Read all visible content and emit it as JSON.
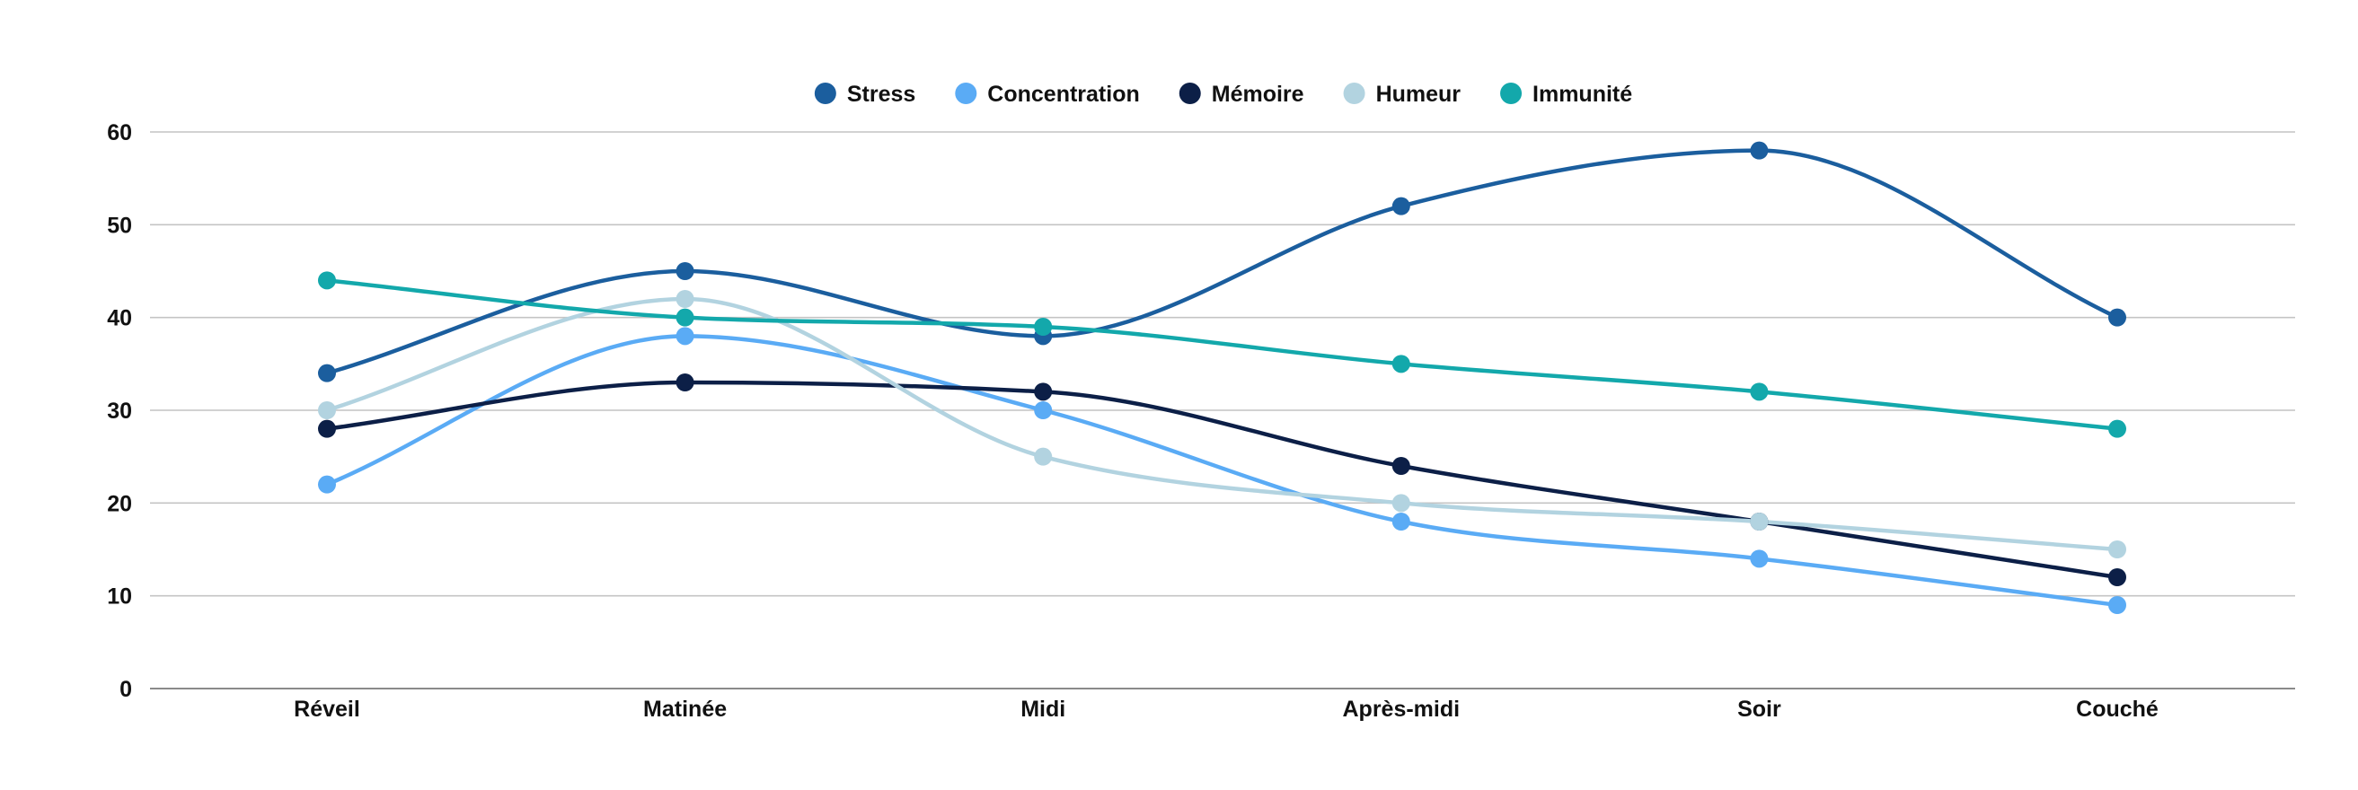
{
  "chart_data": {
    "type": "line",
    "title": "",
    "xlabel": "",
    "ylabel": "",
    "categories": [
      "Réveil",
      "Matinée",
      "Midi",
      "Après-midi",
      "Soir",
      "Couché"
    ],
    "ylim": [
      0,
      60
    ],
    "yticks": [
      0,
      10,
      20,
      30,
      40,
      50,
      60
    ],
    "grid": true,
    "smooth": true,
    "legend_position": "top-center",
    "series": [
      {
        "name": "Stress",
        "color": "#1b5e9e",
        "values": [
          34,
          45,
          38,
          52,
          58,
          40
        ]
      },
      {
        "name": "Concentration",
        "color": "#5aabf5",
        "values": [
          22,
          38,
          30,
          18,
          14,
          9
        ]
      },
      {
        "name": "Mémoire",
        "color": "#0c1f47",
        "values": [
          28,
          33,
          32,
          24,
          18,
          12
        ]
      },
      {
        "name": "Humeur",
        "color": "#b2d3e0",
        "values": [
          30,
          42,
          25,
          20,
          18,
          15
        ]
      },
      {
        "name": "Immunité",
        "color": "#13a8ab",
        "values": [
          44,
          40,
          39,
          35,
          32,
          28
        ]
      }
    ]
  }
}
